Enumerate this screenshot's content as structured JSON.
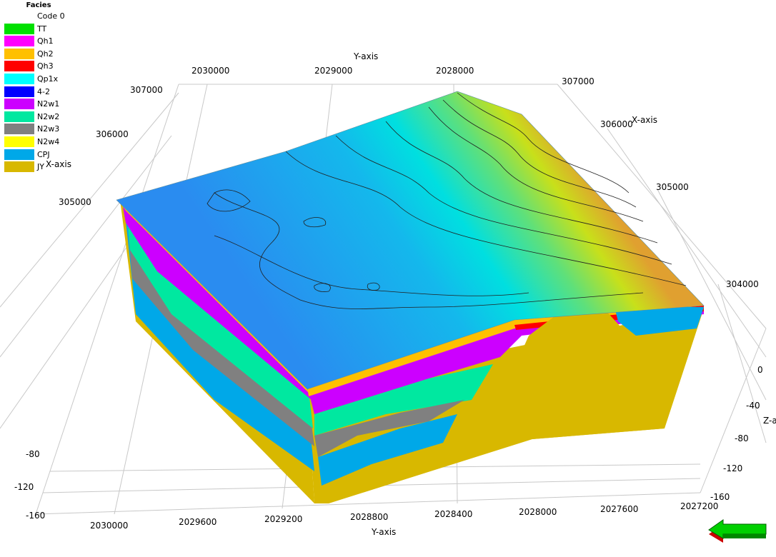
{
  "chart_data": {
    "type": "3d-geological-facies-model",
    "legend": {
      "title": "Facies",
      "items": [
        {
          "label": "Code 0",
          "color": "#ffffff"
        },
        {
          "label": "TT",
          "color": "#00e000"
        },
        {
          "label": "Qh1",
          "color": "#ff00ff"
        },
        {
          "label": "Qh2",
          "color": "#ffc000"
        },
        {
          "label": "Qh3",
          "color": "#ff0000"
        },
        {
          "label": "Qp1x",
          "color": "#00ffff"
        },
        {
          "label": "4-2",
          "color": "#0000ff"
        },
        {
          "label": "N2w1",
          "color": "#cc00ff"
        },
        {
          "label": "N2w2",
          "color": "#00e8a0"
        },
        {
          "label": "N2w3",
          "color": "#808080"
        },
        {
          "label": "N2w4",
          "color": "#ffff00"
        },
        {
          "label": "CPJ",
          "color": "#00a8e8"
        },
        {
          "label": "JY",
          "color": "#d8b800"
        }
      ]
    },
    "axes": {
      "y_axis_label": "Y-axis",
      "x_axis_label": "X-axis",
      "z_axis_label": "Z-axis",
      "y_ticks_top": [
        "2030000",
        "2029000",
        "2028000"
      ],
      "y_ticks_bottom": [
        "2030000",
        "2029600",
        "2029200",
        "2028800",
        "2028400",
        "2028000",
        "2027600",
        "2027200"
      ],
      "x_ticks_left": [
        "307000",
        "306000",
        "305000"
      ],
      "x_ticks_right": [
        "307000",
        "306000",
        "305000",
        "304000"
      ],
      "z_ticks_left": [
        "-80",
        "-120",
        "-160"
      ],
      "z_ticks_right": [
        "0",
        "-40",
        "-80",
        "-120",
        "-160"
      ],
      "y_range": [
        2027200,
        2030000
      ],
      "x_range": [
        304000,
        307000
      ],
      "z_range": [
        -160,
        0
      ],
      "grid": true
    }
  },
  "navigator": {
    "icon": "arrow-left-icon"
  }
}
